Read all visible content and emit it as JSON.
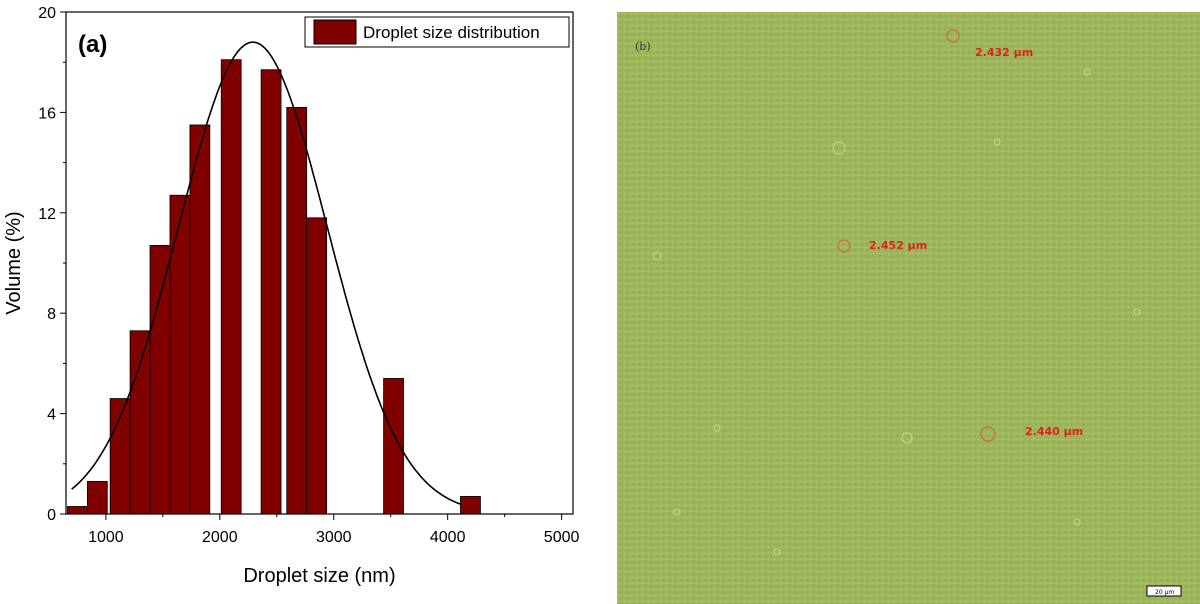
{
  "chart_data": {
    "type": "bar",
    "panel_label": "(a)",
    "xlabel": "Droplet size (nm)",
    "ylabel": "Volume (%)",
    "xlim": [
      650,
      5100
    ],
    "ylim": [
      0,
      20
    ],
    "xticks": [
      1000,
      2000,
      3000,
      4000,
      5000
    ],
    "yticks": [
      0,
      4,
      8,
      12,
      16,
      20
    ],
    "bar_color": "#800000",
    "bin_width": 175,
    "legend": {
      "label": "Droplet size distribution",
      "position": "top-right"
    },
    "series": [
      {
        "name": "Droplet size distribution",
        "x": [
          750,
          925,
          1125,
          1300,
          1475,
          1650,
          1825,
          2100,
          2450,
          2675,
          2850,
          3525,
          4200
        ],
        "values": [
          0.3,
          1.3,
          4.6,
          7.3,
          10.7,
          12.7,
          15.5,
          18.1,
          17.7,
          16.2,
          11.8,
          5.4,
          0.7
        ]
      }
    ],
    "fit_curve": {
      "type": "gaussian",
      "center": 2290,
      "sigma": 655,
      "peak": 18.8
    }
  },
  "micrograph": {
    "panel_label": "(b)",
    "background_color": "#9db55a",
    "annotations": [
      {
        "label": "2.432 µm"
      },
      {
        "label": "2.452 µm"
      },
      {
        "label": "2.440 µm"
      }
    ],
    "scale_bar_label": "20 µm"
  }
}
